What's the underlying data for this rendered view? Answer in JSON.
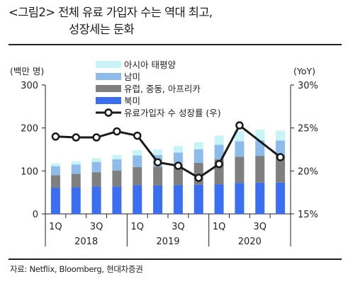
{
  "title": {
    "line1": "<그림2> 전체 유료 가입자 수는 역대 최고,",
    "line2": "성장세는 둔화"
  },
  "source": "자료: Netflix, Bloomberg, 현대차증권",
  "colors": {
    "asia": "#c9f4f7",
    "latam": "#8dbcec",
    "emea": "#7f7f7f",
    "na": "#3b6ef1",
    "line": "#1a1a1a",
    "marker_fill": "#ffffff"
  },
  "chart_data": {
    "type": "bar",
    "stacked": true,
    "categories": [
      "1Q",
      "2Q",
      "3Q",
      "4Q",
      "1Q",
      "2Q",
      "3Q",
      "4Q",
      "1Q",
      "2Q",
      "3Q",
      "4Q"
    ],
    "x_tick_labels": [
      "1Q",
      "",
      "3Q",
      "",
      "1Q",
      "",
      "3Q",
      "",
      "1Q",
      "",
      "3Q",
      ""
    ],
    "year_labels": [
      "2018",
      "2019",
      "2020"
    ],
    "ylabel": "(백만 명)",
    "y2label": "(YoY)",
    "ylim": [
      0,
      300
    ],
    "yticks": [
      0,
      100,
      200,
      300
    ],
    "y2lim": [
      15,
      30
    ],
    "y2ticks": [
      "15%",
      "20%",
      "25%",
      "30%"
    ],
    "legend_position": "top",
    "series": [
      {
        "name": "북미",
        "color_key": "na",
        "values": [
          61,
          62,
          64,
          64,
          67,
          66,
          67,
          68,
          69,
          72,
          73,
          73
        ]
      },
      {
        "name": "유럽, 중동, 아프리카",
        "color_key": "emea",
        "values": [
          29,
          31,
          33,
          37,
          42,
          44,
          47,
          51,
          58,
          61,
          62,
          63
        ]
      },
      {
        "name": "남미",
        "color_key": "latam",
        "values": [
          21,
          22,
          24,
          26,
          27,
          27,
          29,
          31,
          34,
          36,
          36,
          35
        ]
      },
      {
        "name": "아시아 태평양",
        "color_key": "asia",
        "values": [
          7,
          8,
          9,
          10,
          12,
          13,
          15,
          17,
          21,
          24,
          25,
          23
        ]
      }
    ],
    "line_series": {
      "name": "유료가입자 수 성장률 (우)",
      "axis": "right",
      "unit": "%",
      "values": [
        24.0,
        23.9,
        23.9,
        24.6,
        24.1,
        21.0,
        20.6,
        19.2,
        20.8,
        25.3,
        null,
        21.6
      ]
    }
  }
}
